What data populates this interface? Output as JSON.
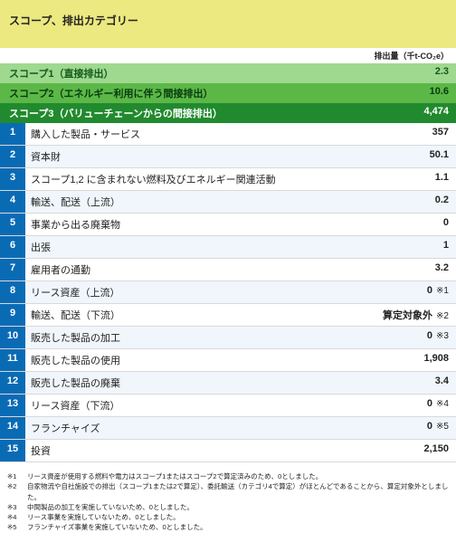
{
  "header": {
    "title": "スコープ、排出カテゴリー",
    "unit_label": "排出量（千t-CO₂e）"
  },
  "scopes": [
    {
      "label": "スコープ1（直接排出）",
      "value": "2.3"
    },
    {
      "label": "スコープ2（エネルギー利用に伴う間接排出）",
      "value": "10.6"
    },
    {
      "label": "スコープ3（バリューチェーンからの間接排出）",
      "value": "4,474"
    }
  ],
  "rows": [
    {
      "n": "1",
      "label": "購入した製品・サービス",
      "value": "357",
      "note": ""
    },
    {
      "n": "2",
      "label": "資本財",
      "value": "50.1",
      "note": ""
    },
    {
      "n": "3",
      "label": "スコープ1,2 に含まれない燃料及びエネルギー関連活動",
      "value": "1.1",
      "note": ""
    },
    {
      "n": "4",
      "label": "輸送、配送（上流）",
      "value": "0.2",
      "note": ""
    },
    {
      "n": "5",
      "label": "事業から出る廃棄物",
      "value": "0",
      "note": ""
    },
    {
      "n": "6",
      "label": "出張",
      "value": "1",
      "note": ""
    },
    {
      "n": "7",
      "label": "雇用者の通勤",
      "value": "3.2",
      "note": ""
    },
    {
      "n": "8",
      "label": "リース資産（上流）",
      "value": "0",
      "note": "※1"
    },
    {
      "n": "9",
      "label": "輸送、配送（下流）",
      "value": "算定対象外",
      "note": "※2"
    },
    {
      "n": "10",
      "label": "販売した製品の加工",
      "value": "0",
      "note": "※3"
    },
    {
      "n": "11",
      "label": "販売した製品の使用",
      "value": "1,908",
      "note": ""
    },
    {
      "n": "12",
      "label": "販売した製品の廃棄",
      "value": "3.4",
      "note": ""
    },
    {
      "n": "13",
      "label": "リース資産（下流）",
      "value": "0",
      "note": "※4"
    },
    {
      "n": "14",
      "label": "フランチャイズ",
      "value": "0",
      "note": "※5"
    },
    {
      "n": "15",
      "label": "投資",
      "value": "2,150",
      "note": ""
    }
  ],
  "footnotes": [
    {
      "mark": "※1",
      "text": "リース資産が使用する燃料や電力はスコープ1またはスコープ2で算定済みのため、0としました。"
    },
    {
      "mark": "※2",
      "text": "自家物流や自社施設での排出（スコープ1または2で算定）、委託輸送（カテゴリ4で算定）がほとんどであることから、算定対象外としました。"
    },
    {
      "mark": "※3",
      "text": "中間製品の加工を実施していないため、0としました。"
    },
    {
      "mark": "※4",
      "text": "リース事業を実施していないため、0としました。"
    },
    {
      "mark": "※5",
      "text": "フランチャイズ事業を実施していないため、0としました。"
    }
  ]
}
